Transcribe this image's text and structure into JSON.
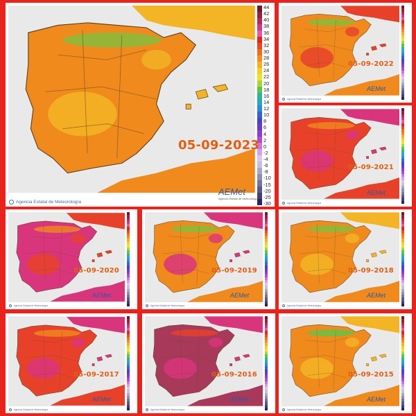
{
  "colors": {
    "frame": "#e8231c",
    "sea": "#e9e9e9",
    "land_warm": "#f08a1d",
    "land_hot": "#e8412a",
    "land_very_hot": "#d9357c",
    "land_extreme": "#a8395a",
    "land_mild": "#f3b425",
    "land_cool": "#7fbf3f",
    "date_text": "#e35d12"
  },
  "color_scale": {
    "labels": [
      "44",
      "42",
      "40",
      "38",
      "36",
      "34",
      "32",
      "30",
      "28",
      "26",
      "24",
      "22",
      "20",
      "18",
      "16",
      "14",
      "12",
      "10",
      "8",
      "6",
      "4",
      "2",
      "0",
      "-2",
      "-4",
      "-6",
      "-8",
      "-10",
      "-15",
      "-20",
      "-25",
      "-30"
    ],
    "colors": [
      "#6b1a2b",
      "#8c2340",
      "#b02b5a",
      "#cf3a86",
      "#e15aa5",
      "#e8231c",
      "#f0441d",
      "#f66a1c",
      "#f98a1e",
      "#fbad22",
      "#f9cd27",
      "#e8e52b",
      "#a8d63a",
      "#5fc448",
      "#2fb39a",
      "#29a6c8",
      "#2d8ad8",
      "#3264d8",
      "#4343d0",
      "#6a3ad0",
      "#8f3bd3",
      "#b04ad8",
      "#c978e0",
      "#d7a0e8",
      "#e2c2f0",
      "#c2c2d8",
      "#a8a8c4",
      "#8e8eb0",
      "#74749c",
      "#5a5a88",
      "#404074",
      "#262660"
    ]
  },
  "panels": [
    {
      "date": "05-09-2023",
      "dominant": "#f08a1d",
      "secondary": "#f3b425",
      "accent": "#7fbf3f",
      "footer": "Agencia Estatal de Meteorología",
      "logo": "AEMet",
      "logo_sub": "Agencia Estatal de Meteorología"
    },
    {
      "date": "05-09-2022",
      "dominant": "#f08a1d",
      "secondary": "#e8412a",
      "accent": "#7fbf3f",
      "footer": "Agencia Estatal de Meteorología",
      "logo": "AEMet",
      "logo_sub": ""
    },
    {
      "date": "05-09-2021",
      "dominant": "#e8412a",
      "secondary": "#d9357c",
      "accent": "#f08a1d",
      "footer": "Agencia Estatal de Meteorología",
      "logo": "AEMet",
      "logo_sub": ""
    },
    {
      "date": "05-09-2020",
      "dominant": "#d9357c",
      "secondary": "#e8412a",
      "accent": "#f08a1d",
      "footer": "Agencia Estatal de Meteorología",
      "logo": "AEMet",
      "logo_sub": ""
    },
    {
      "date": "05-09-2019",
      "dominant": "#f08a1d",
      "secondary": "#d9357c",
      "accent": "#7fbf3f",
      "footer": "Agencia Estatal de Meteorología",
      "logo": "AEMet",
      "logo_sub": ""
    },
    {
      "date": "05-09-2018",
      "dominant": "#f08a1d",
      "secondary": "#f3b425",
      "accent": "#7fbf3f",
      "footer": "Agencia Estatal de Meteorología",
      "logo": "AEMet",
      "logo_sub": ""
    },
    {
      "date": "05-09-2017",
      "dominant": "#e8412a",
      "secondary": "#d9357c",
      "accent": "#f08a1d",
      "footer": "Agencia Estatal de Meteorología",
      "logo": "AEMet",
      "logo_sub": ""
    },
    {
      "date": "05-09-2016",
      "dominant": "#a8395a",
      "secondary": "#d9357c",
      "accent": "#e8412a",
      "footer": "Agencia Estatal de Meteorología",
      "logo": "AEMet",
      "logo_sub": ""
    },
    {
      "date": "05-09-2015",
      "dominant": "#f08a1d",
      "secondary": "#f3b425",
      "accent": "#5fc448",
      "footer": "Agencia Estatal de Meteorología",
      "logo": "AEMet",
      "logo_sub": ""
    }
  ]
}
